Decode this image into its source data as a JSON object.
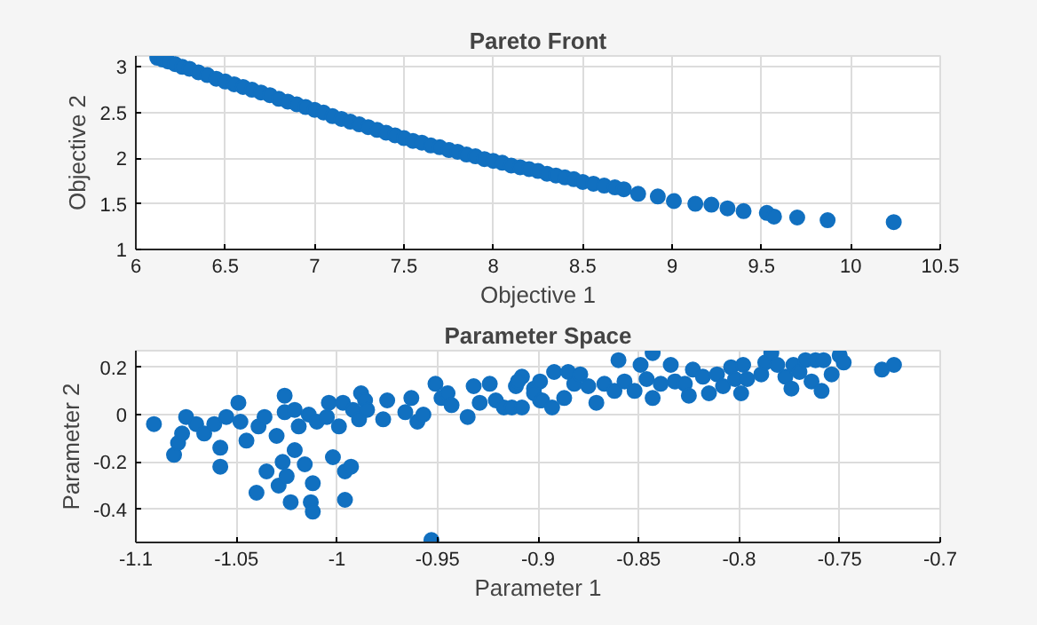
{
  "chart_data": [
    {
      "type": "scatter",
      "title": "Pareto Front",
      "xlabel": "Objective 1",
      "ylabel": "Objective 2",
      "xlim": [
        6,
        10.5
      ],
      "ylim": [
        1,
        3.12
      ],
      "xticks": [
        6,
        6.5,
        7,
        7.5,
        8,
        8.5,
        9,
        9.5,
        10,
        10.5
      ],
      "yticks": [
        1,
        1.5,
        2,
        2.5,
        3
      ],
      "grid": true,
      "marker": "circle",
      "series": [
        {
          "color": "#1170c0",
          "x": [
            6.12,
            6.15,
            6.18,
            6.22,
            6.26,
            6.3,
            6.35,
            6.4,
            6.45,
            6.5,
            6.55,
            6.6,
            6.65,
            6.7,
            6.75,
            6.8,
            6.85,
            6.9,
            6.95,
            7.0,
            7.05,
            7.1,
            7.15,
            7.2,
            7.25,
            7.3,
            7.35,
            7.4,
            7.45,
            7.5,
            7.55,
            7.6,
            7.65,
            7.7,
            7.75,
            7.8,
            7.85,
            7.9,
            7.95,
            8.0,
            8.05,
            8.1,
            8.15,
            8.2,
            8.25,
            8.3,
            8.35,
            8.4,
            8.45,
            8.5,
            8.56,
            8.62,
            8.68,
            8.73,
            8.81,
            8.92,
            9.01,
            9.13,
            9.22,
            9.31,
            9.4,
            9.53,
            9.57,
            9.7,
            9.87,
            10.24
          ],
          "values": [
            3.1,
            3.08,
            3.06,
            3.03,
            3.0,
            2.98,
            2.94,
            2.91,
            2.87,
            2.84,
            2.81,
            2.78,
            2.75,
            2.72,
            2.69,
            2.65,
            2.62,
            2.59,
            2.56,
            2.53,
            2.5,
            2.46,
            2.43,
            2.4,
            2.37,
            2.34,
            2.31,
            2.28,
            2.25,
            2.22,
            2.19,
            2.17,
            2.14,
            2.12,
            2.09,
            2.07,
            2.04,
            2.02,
            1.99,
            1.97,
            1.95,
            1.92,
            1.9,
            1.88,
            1.86,
            1.83,
            1.81,
            1.79,
            1.77,
            1.74,
            1.72,
            1.7,
            1.68,
            1.66,
            1.61,
            1.58,
            1.53,
            1.5,
            1.49,
            1.45,
            1.42,
            1.4,
            1.36,
            1.35,
            1.32,
            1.3
          ]
        }
      ]
    },
    {
      "type": "scatter",
      "title": "Parameter Space",
      "xlabel": "Parameter 1",
      "ylabel": "Parameter 2",
      "xlim": [
        -1.1,
        -0.7
      ],
      "ylim": [
        -0.54,
        0.27
      ],
      "xticks": [
        -1.1,
        -1.05,
        -1,
        -0.95,
        -0.9,
        -0.85,
        -0.8,
        -0.75,
        -0.7
      ],
      "yticks": [
        -0.4,
        -0.2,
        0,
        0.2
      ],
      "grid": true,
      "marker": "circle",
      "series": [
        {
          "color": "#1170c0",
          "x": [
            -1.091,
            -1.081,
            -1.079,
            -1.077,
            -1.075,
            -1.07,
            -1.066,
            -1.061,
            -1.058,
            -1.058,
            -1.055,
            -1.049,
            -1.048,
            -1.045,
            -1.039,
            -1.04,
            -1.035,
            -1.036,
            -1.03,
            -1.029,
            -1.027,
            -1.026,
            -1.025,
            -1.026,
            -1.021,
            -1.023,
            -1.021,
            -1.019,
            -1.016,
            -1.014,
            -1.013,
            -1.012,
            -1.012,
            -1.01,
            -1.005,
            -1.004,
            -1.002,
            -0.999,
            -0.997,
            -0.996,
            -0.996,
            -0.993,
            -0.992,
            -0.989,
            -0.988,
            -0.986,
            -0.985,
            -0.977,
            -0.975,
            -0.966,
            -0.963,
            -0.96,
            -0.957,
            -0.953,
            -0.951,
            -0.948,
            -0.945,
            -0.943,
            -0.935,
            -0.932,
            -0.929,
            -0.924,
            -0.921,
            -0.917,
            -0.913,
            -0.911,
            -0.908,
            -0.902,
            -0.899,
            -0.91,
            -0.908,
            -0.902,
            -0.899,
            -0.898,
            -0.893,
            -0.892,
            -0.887,
            -0.885,
            -0.882,
            -0.879,
            -0.875,
            -0.871,
            -0.867,
            -0.862,
            -0.86,
            -0.857,
            -0.852,
            -0.849,
            -0.846,
            -0.843,
            -0.843,
            -0.839,
            -0.834,
            -0.832,
            -0.827,
            -0.825,
            -0.823,
            -0.818,
            -0.815,
            -0.811,
            -0.808,
            -0.804,
            -0.802,
            -0.799,
            -0.798,
            -0.796,
            -0.789,
            -0.787,
            -0.784,
            -0.781,
            -0.777,
            -0.774,
            -0.773,
            -0.77,
            -0.767,
            -0.764,
            -0.762,
            -0.759,
            -0.758,
            -0.754,
            -0.75,
            -0.748,
            -0.729,
            -0.723
          ],
          "values": [
            -0.04,
            -0.17,
            -0.12,
            -0.08,
            -0.01,
            -0.04,
            -0.08,
            -0.04,
            -0.14,
            -0.22,
            -0.01,
            0.05,
            -0.03,
            -0.11,
            -0.05,
            -0.33,
            -0.24,
            -0.01,
            -0.09,
            -0.3,
            -0.2,
            0.08,
            -0.26,
            0.01,
            -0.15,
            -0.37,
            0.02,
            -0.05,
            -0.21,
            0.0,
            -0.37,
            -0.29,
            -0.41,
            -0.03,
            -0.01,
            0.05,
            -0.18,
            -0.05,
            0.05,
            -0.24,
            -0.36,
            -0.22,
            0.02,
            -0.02,
            0.09,
            0.06,
            0.02,
            -0.02,
            0.06,
            0.01,
            0.07,
            -0.03,
            0.0,
            -0.53,
            0.13,
            0.07,
            0.09,
            0.04,
            -0.01,
            0.12,
            0.05,
            0.13,
            0.06,
            0.03,
            0.03,
            0.12,
            0.16,
            0.11,
            0.06,
            0.14,
            0.03,
            0.09,
            0.14,
            0.06,
            0.03,
            0.18,
            0.07,
            0.18,
            0.13,
            0.17,
            0.12,
            0.05,
            0.13,
            0.1,
            0.23,
            0.14,
            0.1,
            0.21,
            0.15,
            0.26,
            0.07,
            0.13,
            0.21,
            0.14,
            0.13,
            0.08,
            0.19,
            0.16,
            0.09,
            0.17,
            0.12,
            0.2,
            0.15,
            0.09,
            0.21,
            0.15,
            0.17,
            0.22,
            0.26,
            0.21,
            0.16,
            0.11,
            0.21,
            0.18,
            0.23,
            0.14,
            0.23,
            0.1,
            0.23,
            0.17,
            0.25,
            0.22,
            0.19,
            0.21
          ]
        }
      ]
    }
  ]
}
